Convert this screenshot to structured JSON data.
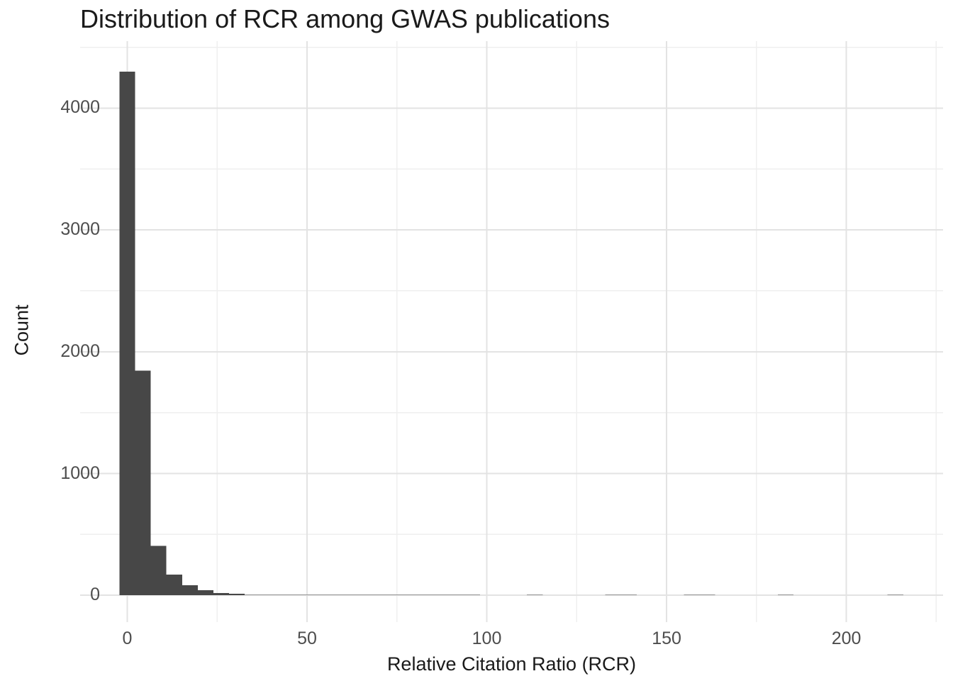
{
  "chart_data": {
    "type": "bar",
    "subtype": "histogram",
    "title": "Distribution of RCR among GWAS publications",
    "xlabel": "Relative Citation Ratio (RCR)",
    "ylabel": "Count",
    "legend": "none",
    "grid": "on",
    "bin_width": 4.36,
    "first_bin_center": 0,
    "counts": [
      4300,
      1845,
      405,
      170,
      82,
      42,
      20,
      12,
      8,
      6,
      4,
      3,
      3,
      2,
      2,
      1,
      1,
      1,
      1,
      1,
      1,
      1,
      1,
      0,
      0,
      0,
      1,
      0,
      0,
      0,
      0,
      1,
      1,
      0,
      0,
      0,
      1,
      1,
      0,
      0,
      0,
      0,
      1,
      0,
      0,
      0,
      0,
      0,
      0,
      1
    ],
    "x_major_ticks": [
      0,
      50,
      100,
      150,
      200
    ],
    "x_minor_ticks": [
      25,
      75,
      125,
      175,
      225
    ],
    "y_major_ticks": [
      0,
      1000,
      2000,
      3000,
      4000
    ],
    "y_minor_ticks": [
      500,
      1500,
      2500,
      3500,
      4500
    ],
    "xlim": [
      -13.1,
      226.9
    ],
    "ylim": [
      -220,
      4550
    ],
    "colors": {
      "bar": "#474747",
      "grid_major": "#e3e3e3",
      "grid_minor": "#efefef",
      "axis_text": "#4d4d4d",
      "title_text": "#1a1a1a",
      "background": "#ffffff"
    }
  }
}
